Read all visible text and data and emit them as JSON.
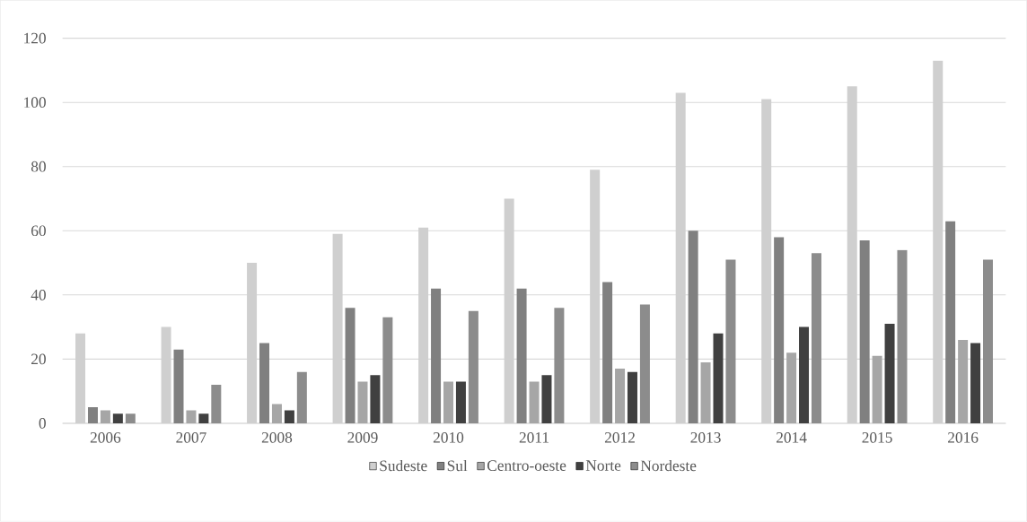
{
  "chart_data": {
    "type": "bar",
    "categories": [
      "2006",
      "2007",
      "2008",
      "2009",
      "2010",
      "2011",
      "2012",
      "2013",
      "2014",
      "2015",
      "2016"
    ],
    "series": [
      {
        "name": "Sudeste",
        "color": "#cfcfcf",
        "values": [
          28,
          30,
          50,
          59,
          61,
          70,
          79,
          103,
          101,
          105,
          113
        ]
      },
      {
        "name": "Sul",
        "color": "#808080",
        "values": [
          5,
          23,
          25,
          36,
          42,
          42,
          44,
          60,
          58,
          57,
          63
        ]
      },
      {
        "name": "Centro-oeste",
        "color": "#a6a6a6",
        "values": [
          4,
          4,
          6,
          13,
          13,
          13,
          17,
          19,
          22,
          21,
          26
        ]
      },
      {
        "name": "Norte",
        "color": "#404040",
        "values": [
          3,
          3,
          4,
          15,
          13,
          15,
          16,
          28,
          30,
          31,
          25
        ]
      },
      {
        "name": "Nordeste",
        "color": "#8c8c8c",
        "values": [
          3,
          12,
          16,
          33,
          35,
          36,
          37,
          51,
          53,
          54,
          51
        ]
      }
    ],
    "ylim": [
      0,
      120
    ],
    "yticks": [
      0,
      20,
      40,
      60,
      80,
      100,
      120
    ],
    "grid": "y",
    "legend": "bottom"
  }
}
